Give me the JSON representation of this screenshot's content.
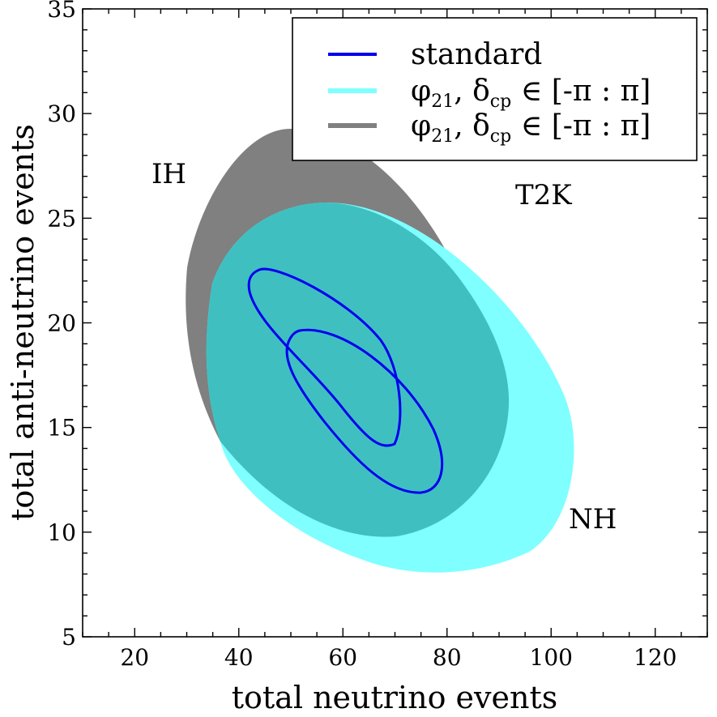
{
  "chart_data": {
    "type": "area",
    "title": "",
    "xlabel": "total neutrino events",
    "ylabel": "total anti-neutrino events",
    "xlim": [
      10,
      130
    ],
    "ylim": [
      5,
      35
    ],
    "xticks": [
      20,
      40,
      60,
      80,
      100,
      120
    ],
    "yticks": [
      5,
      10,
      15,
      20,
      25,
      30,
      35
    ],
    "grid": false,
    "legend_position": "top-right",
    "legend": [
      {
        "label": "standard",
        "color": "#0000ee",
        "style": "line"
      },
      {
        "label_main": "φ",
        "label_sub": "21",
        "label_rest": ", δ",
        "label_sub2": "cp",
        "label_tail": " ∈ [-π : π]",
        "color": "#7fffff",
        "style": "band"
      },
      {
        "label_main": "φ",
        "label_sub": "21",
        "label_rest": ", δ",
        "label_sub2": "cp",
        "label_tail": " ∈ [-π : π]",
        "color": "#808080",
        "style": "band"
      }
    ],
    "annotations": [
      {
        "text": "IH",
        "x": 28,
        "y": 27.2
      },
      {
        "text": "T2K",
        "x": 98,
        "y": 26.2
      },
      {
        "text": "NH",
        "x": 109,
        "y": 10.6
      }
    ],
    "series": [
      {
        "region": "IH-band",
        "color": "#808080",
        "boundary": [
          [
            50,
            29.2
          ],
          [
            58,
            28.2
          ],
          [
            66,
            26.2
          ],
          [
            74,
            24.1
          ],
          [
            82,
            21.5
          ],
          [
            84,
            19.5
          ],
          [
            79,
            17.2
          ],
          [
            70,
            15.2
          ],
          [
            60,
            13.6
          ],
          [
            50,
            13.0
          ],
          [
            38,
            13.8
          ],
          [
            33,
            16.5
          ],
          [
            30.5,
            20.0
          ],
          [
            32,
            24.0
          ],
          [
            38,
            27.4
          ],
          [
            44,
            28.8
          ]
        ]
      },
      {
        "region": "NH-band",
        "color": "#7fffff",
        "boundary": [
          [
            57,
            25.7
          ],
          [
            66,
            25.1
          ],
          [
            76,
            23.5
          ],
          [
            88,
            20.8
          ],
          [
            98,
            17.8
          ],
          [
            104,
            14.0
          ],
          [
            101,
            10.6
          ],
          [
            90,
            8.4
          ],
          [
            73,
            8.1
          ],
          [
            58,
            9.2
          ],
          [
            46,
            11.3
          ],
          [
            38,
            13.8
          ],
          [
            35,
            16.5
          ],
          [
            35.2,
            20.0
          ],
          [
            39,
            23.4
          ],
          [
            47,
            25.2
          ]
        ]
      },
      {
        "region": "overlap",
        "color": "#40bfc1",
        "boundary": [
          [
            57,
            25.7
          ],
          [
            66,
            25.1
          ],
          [
            74,
            23.8
          ],
          [
            82,
            21.8
          ],
          [
            88,
            19.2
          ],
          [
            91,
            16.3
          ],
          [
            88.5,
            13.2
          ],
          [
            80,
            10.8
          ],
          [
            66,
            9.8
          ],
          [
            54,
            10.8
          ],
          [
            45,
            12.4
          ],
          [
            38,
            13.9
          ],
          [
            35,
            16.5
          ],
          [
            35.2,
            20.0
          ],
          [
            39,
            23.4
          ],
          [
            47,
            25.2
          ]
        ]
      },
      {
        "name": "NH",
        "color": "#0000ee",
        "boundary": [
          [
            53,
            19.6
          ],
          [
            60,
            19.0
          ],
          [
            68,
            17.6
          ],
          [
            75,
            15.6
          ],
          [
            79,
            13.0
          ],
          [
            77,
            11.8
          ],
          [
            70,
            12.4
          ],
          [
            63,
            14.0
          ],
          [
            56,
            15.8
          ],
          [
            51,
            18.0
          ],
          [
            51,
            19.2
          ]
        ]
      },
      {
        "name": "IH",
        "color": "#0000ee",
        "boundary": [
          [
            45,
            22.2
          ],
          [
            54,
            20.8
          ],
          [
            63,
            18.5
          ],
          [
            70,
            15.8
          ],
          [
            70,
            14.0
          ],
          [
            67,
            14.0
          ],
          [
            60,
            15.5
          ],
          [
            52,
            17.5
          ],
          [
            46,
            19.8
          ],
          [
            43.5,
            21.4
          ]
        ]
      }
    ]
  }
}
